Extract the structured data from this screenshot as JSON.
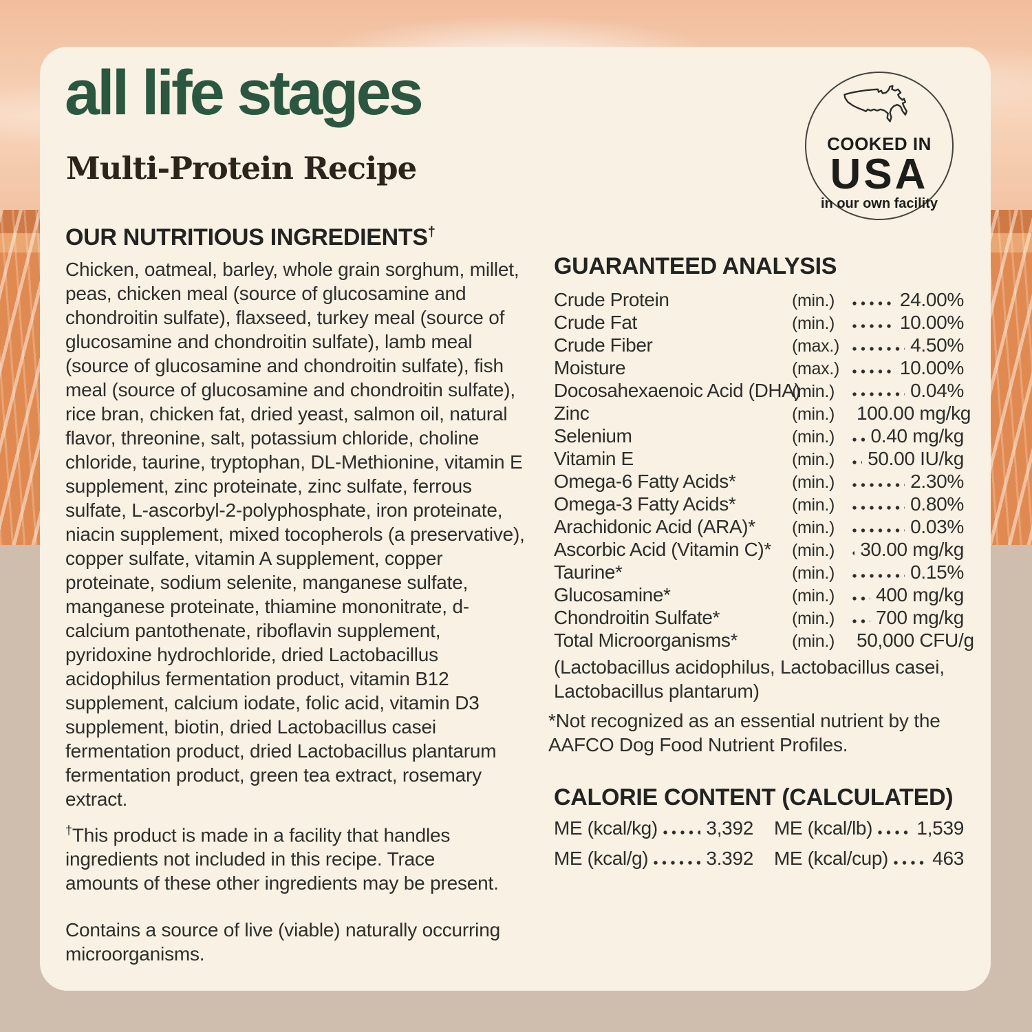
{
  "header": {
    "title": "all life stages",
    "subtitle": "Multi-Protein Recipe"
  },
  "badge": {
    "cooked_in": "COOKED IN",
    "usa": "USA",
    "facility": "in our own facility",
    "map_icon": "usa-map-outline"
  },
  "ingredients": {
    "heading": "OUR NUTRITIOUS INGREDIENTS",
    "dagger": "†",
    "body": "Chicken, oatmeal, barley, whole grain sorghum, millet, peas, chicken meal (source of glucosamine and chondroitin sulfate), flaxseed, turkey meal (source of glucosamine and chondroitin sulfate), lamb meal (source of glucosamine and chondroitin sulfate), fish meal (source of glucosamine and chondroitin sulfate), rice bran, chicken fat, dried yeast, salmon oil, natural flavor, threonine, salt, potassium chloride, choline chloride, taurine, tryptophan, DL-Methionine, vitamin E supplement, zinc proteinate, zinc sulfate, ferrous sulfate, L-ascorbyl-2-polyphosphate, iron proteinate, niacin supplement, mixed tocopherols (a preservative), copper sulfate, vitamin A supplement, copper proteinate, sodium selenite, manganese sulfate, manganese proteinate, thiamine mononitrate, d-calcium pantothenate, riboflavin supplement, pyridoxine hydrochloride, dried Lactobacillus acidophilus fermentation product, vitamin B12 supplement, calcium iodate, folic acid, vitamin D3 supplement, biotin, dried Lactobacillus casei fermentation product, dried Lactobacillus plantarum fermentation product, green tea extract, rosemary extract.",
    "facility_note": "This product is made in a facility that handles ingredients not included in this recipe. Trace amounts of these other ingredients may be present.",
    "microorganisms_note": "Contains a source of live (viable) naturally occurring microorganisms."
  },
  "guaranteed_analysis": {
    "heading": "GUARANTEED ANALYSIS",
    "rows": [
      {
        "nutrient": "Crude Protein",
        "basis": "(min.)",
        "value": "24.00%"
      },
      {
        "nutrient": "Crude Fat",
        "basis": "(min.)",
        "value": "10.00%"
      },
      {
        "nutrient": "Crude Fiber",
        "basis": "(max.)",
        "value": "4.50%"
      },
      {
        "nutrient": "Moisture",
        "basis": "(max.)",
        "value": "10.00%"
      },
      {
        "nutrient": "Docosahexaenoic Acid (DHA)",
        "basis": "(min.)",
        "value": "0.04%"
      },
      {
        "nutrient": "Zinc",
        "basis": "(min.)",
        "value": "100.00 mg/kg"
      },
      {
        "nutrient": "Selenium",
        "basis": "(min.)",
        "value": "0.40 mg/kg"
      },
      {
        "nutrient": "Vitamin E",
        "basis": "(min.)",
        "value": "50.00 IU/kg"
      },
      {
        "nutrient": "Omega-6 Fatty Acids*",
        "basis": "(min.)",
        "value": "2.30%"
      },
      {
        "nutrient": "Omega-3 Fatty Acids*",
        "basis": "(min.)",
        "value": "0.80%"
      },
      {
        "nutrient": "Arachidonic Acid (ARA)*",
        "basis": "(min.)",
        "value": "0.03%"
      },
      {
        "nutrient": "Ascorbic Acid (Vitamin C)*",
        "basis": "(min.)",
        "value": "30.00 mg/kg"
      },
      {
        "nutrient": "Taurine*",
        "basis": "(min.)",
        "value": "0.15%"
      },
      {
        "nutrient": "Glucosamine*",
        "basis": "(min.)",
        "value": "400 mg/kg"
      },
      {
        "nutrient": "Chondroitin Sulfate*",
        "basis": "(min.)",
        "value": "700 mg/kg"
      },
      {
        "nutrient": "Total Microorganisms*",
        "basis": "(min.)",
        "value": "50,000 CFU/g"
      }
    ],
    "species_note": "(Lactobacillus acidophilus, Lactobacillus casei, Lactobacillus plantarum)",
    "aafco_note": "*Not recognized as an essential nutrient by the AAFCO Dog Food Nutrient Profiles."
  },
  "calorie_content": {
    "heading": "CALORIE CONTENT (CALCULATED)",
    "columns": [
      [
        {
          "label": "ME (kcal/kg)",
          "value": "3,392"
        },
        {
          "label": "ME (kcal/g)",
          "value": "3.392"
        }
      ],
      [
        {
          "label": "ME (kcal/lb)",
          "value": "1,539"
        },
        {
          "label": "ME (kcal/cup)",
          "value": "463"
        }
      ]
    ]
  },
  "colors": {
    "accent_green": "#2b5741",
    "card_cream": "#f8f1e4",
    "sky_peach": "#f4c3a2",
    "field_orange": "#e08a52",
    "bottom_beige": "#cfbeae",
    "text_dark": "#2d2d2b"
  }
}
